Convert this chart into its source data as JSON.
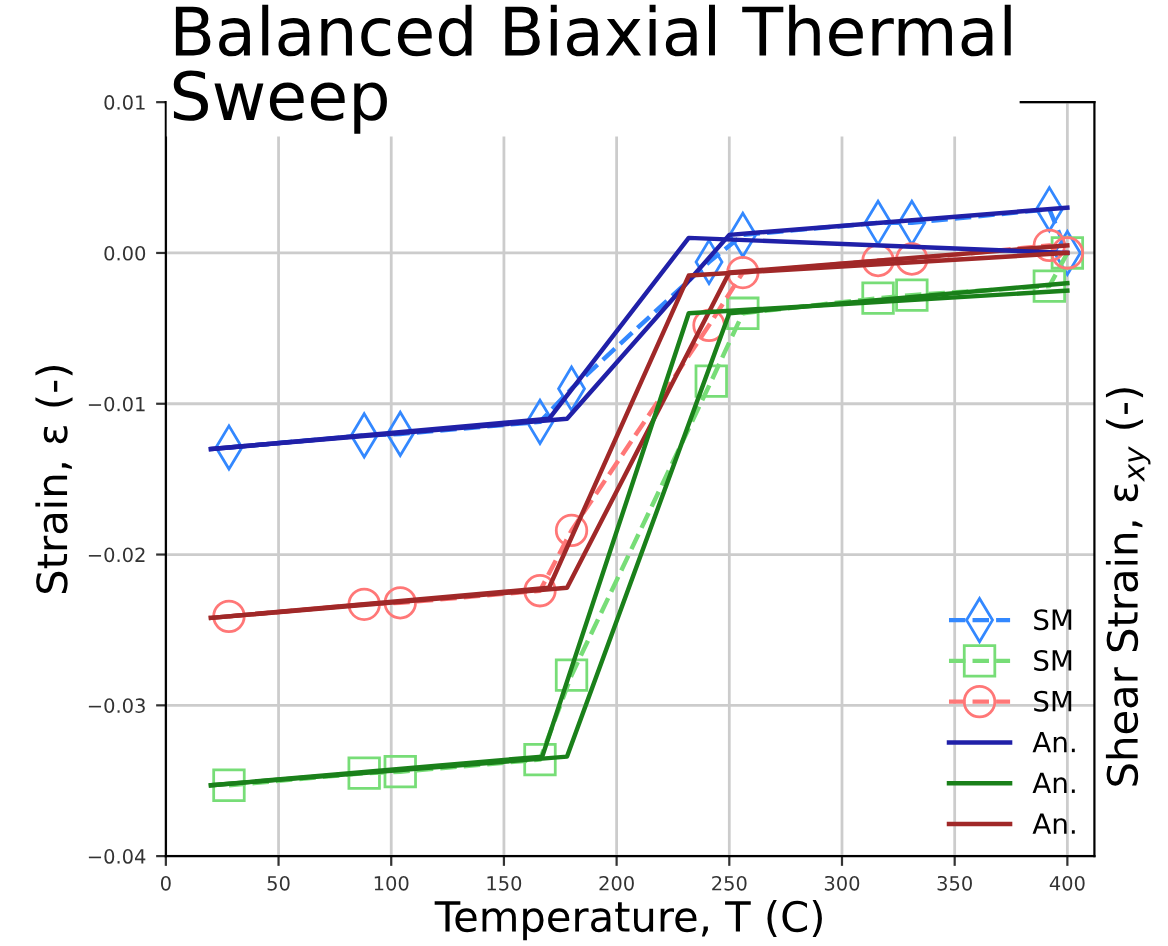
{
  "chart_data": {
    "type": "line",
    "title": "Balanced Biaxial Thermal Sweep",
    "xlabel": "Temperature, T (C)",
    "ylabel": "Strain, ε (-)",
    "y2label": "Shear Strain, ε$_{xy}$ (-)",
    "xlim": [
      0,
      412
    ],
    "xticks": [
      0,
      50,
      100,
      150,
      200,
      250,
      300,
      350,
      400
    ],
    "ylim": [
      -0.04,
      0.01
    ],
    "yticks": [
      {
        "value": -0.04,
        "label": "−0.04"
      },
      {
        "value": -0.03,
        "label": "−0.03"
      },
      {
        "value": -0.02,
        "label": "−0.02"
      },
      {
        "value": -0.01,
        "label": "−0.01"
      },
      {
        "value": 0.0,
        "label": "0.00"
      },
      {
        "value": 0.01,
        "label": "0.01"
      }
    ],
    "grid": true,
    "legend": "bottom right",
    "series": [
      {
        "name": "SM",
        "color": "#3388ff",
        "marker": "diamond",
        "line_style": "dashed",
        "x": [
          28,
          88,
          104,
          166,
          180,
          241,
          256,
          316,
          331,
          392,
          400
        ],
        "values": [
          -0.0129,
          -0.0121,
          -0.012,
          -0.0112,
          -0.009,
          -0.0006,
          0.0012,
          0.002,
          0.002,
          0.0029,
          0.0
        ]
      },
      {
        "name": "SM",
        "color": "#77dd77",
        "marker": "square",
        "line_style": "dashed",
        "x": [
          28,
          88,
          104,
          166,
          180,
          242,
          256,
          316,
          331,
          392,
          400
        ],
        "values": [
          -0.0353,
          -0.0345,
          -0.0344,
          -0.0336,
          -0.028,
          -0.0085,
          -0.004,
          -0.003,
          -0.0028,
          -0.0022,
          0.0
        ]
      },
      {
        "name": "SM",
        "color": "#ff7777",
        "marker": "circle",
        "line_style": "dashed",
        "x": [
          28,
          88,
          104,
          166,
          180,
          241,
          256,
          316,
          331,
          392,
          400
        ],
        "values": [
          -0.0241,
          -0.0233,
          -0.0232,
          -0.0224,
          -0.0184,
          -0.0048,
          -0.0013,
          -0.0005,
          -0.0004,
          0.0005,
          0.0
        ]
      },
      {
        "name": "An.",
        "color": "#2020a8",
        "marker": "none",
        "line_style": "solid",
        "x": [
          20,
          178,
          250,
          400
        ],
        "values": [
          -0.013,
          -0.011,
          0.0012,
          0.003
        ]
      },
      {
        "name": "An.",
        "color": "#1a801a",
        "marker": "none",
        "line_style": "solid",
        "x": [
          20,
          178,
          250,
          400
        ],
        "values": [
          -0.0353,
          -0.0334,
          -0.004,
          -0.002
        ]
      },
      {
        "name": "An.",
        "color": "#a02828",
        "marker": "none",
        "line_style": "solid",
        "x": [
          20,
          178,
          250,
          400
        ],
        "values": [
          -0.0242,
          -0.0222,
          -0.0013,
          0.0005
        ]
      },
      {
        "color": "#2020a8",
        "marker": "none",
        "line_style": "solid",
        "x": [
          20,
          170,
          232,
          400
        ],
        "values": [
          -0.013,
          -0.011,
          0.001,
          0.0
        ]
      },
      {
        "color": "#1a801a",
        "marker": "none",
        "line_style": "solid",
        "x": [
          20,
          167,
          232,
          400
        ],
        "values": [
          -0.0353,
          -0.0334,
          -0.004,
          -0.0025
        ]
      },
      {
        "color": "#a02828",
        "marker": "none",
        "line_style": "solid",
        "x": [
          20,
          170,
          232,
          400
        ],
        "values": [
          -0.0242,
          -0.0222,
          -0.0015,
          0.0
        ]
      }
    ]
  }
}
